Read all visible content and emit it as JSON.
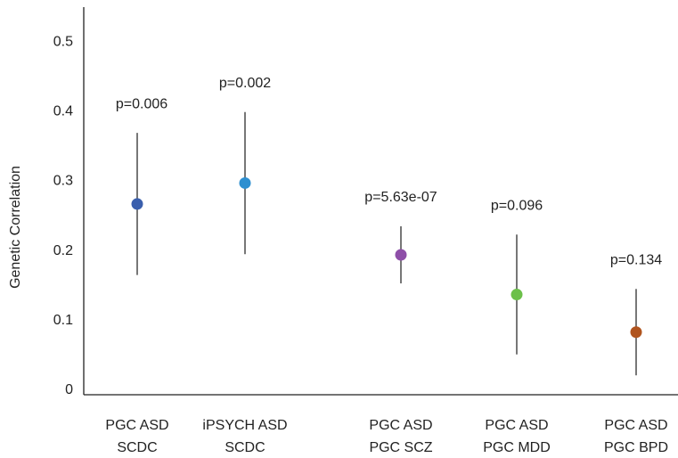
{
  "chart_data": {
    "type": "errorbar",
    "y_label": "Genetic Correlation",
    "categories": [
      [
        "PGC ASD",
        "SCDC"
      ],
      [
        "iPSYCH ASD",
        "SCDC"
      ],
      [
        "PGC ASD",
        "PGC SCZ"
      ],
      [
        "PGC ASD",
        "PGC MDD"
      ],
      [
        "PGC ASD",
        "PGC BPD"
      ]
    ],
    "series": [
      {
        "values": [
          0.27,
          0.3,
          0.197,
          0.14,
          0.086
        ],
        "errors": [
          0.102,
          0.102,
          0.041,
          0.086,
          0.062
        ],
        "colors": [
          "#3a5fad",
          "#2e8fd0",
          "#8e4fa8",
          "#6cc04a",
          "#b0541e"
        ],
        "annotations": [
          "p=0.006",
          "p=0.002",
          "p=5.63e-07",
          "p=0.096",
          "p=0.134"
        ]
      }
    ],
    "ylim": [
      0,
      0.55
    ],
    "yticks": [
      0,
      0.1,
      0.2,
      0.3,
      0.4,
      0.5
    ]
  }
}
